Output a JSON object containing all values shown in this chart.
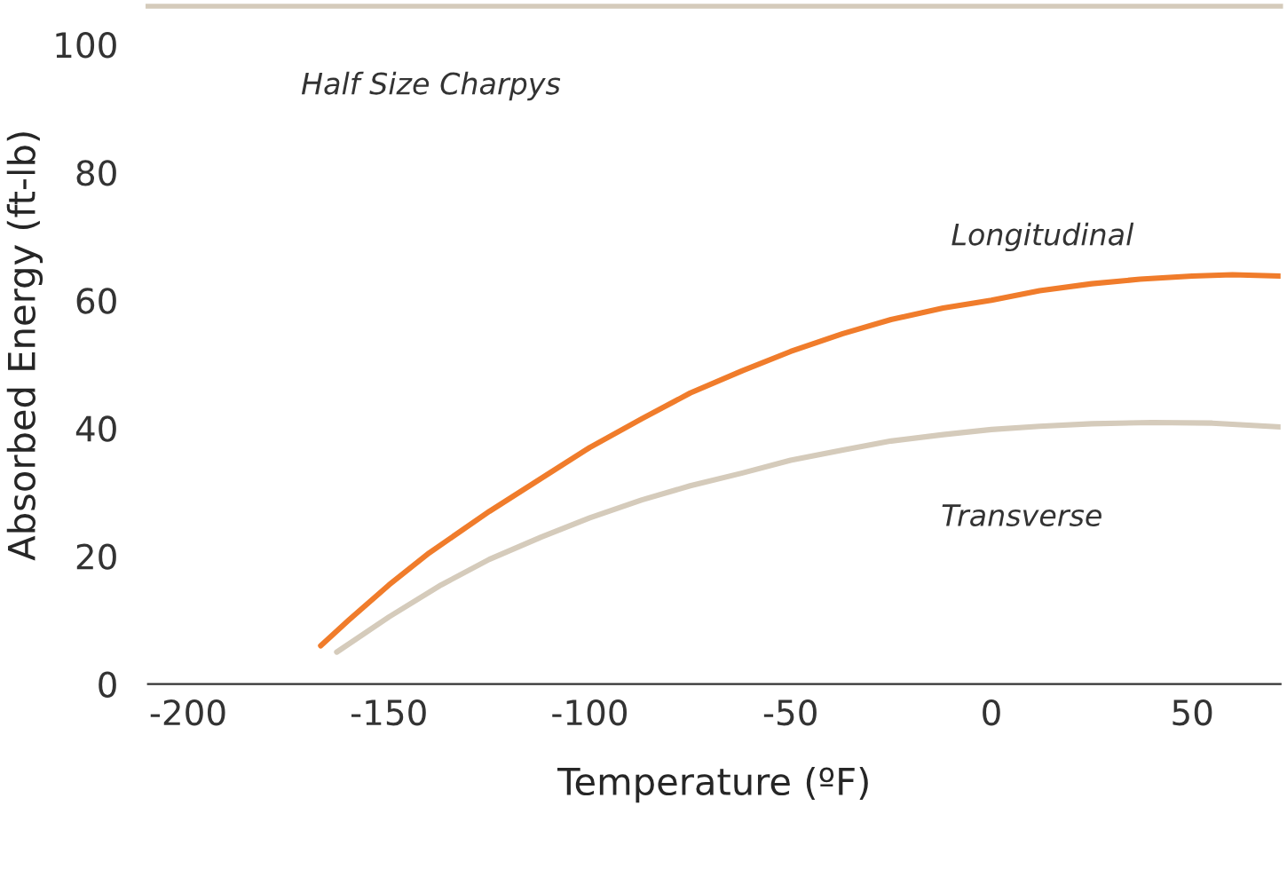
{
  "chart_data": {
    "type": "line",
    "xlabel": "Temperature (ºF)",
    "ylabel": "Absorbed Energy (ft-lb)",
    "xlim": [
      -210,
      72
    ],
    "ylim": [
      0,
      106
    ],
    "xticks": [
      -200,
      -150,
      -100,
      -50,
      0,
      50
    ],
    "yticks": [
      0,
      20,
      40,
      60,
      80,
      100
    ],
    "grid": false,
    "legend": false,
    "marker": "none",
    "line_style": "solid",
    "series": [
      {
        "name": "Longitudinal",
        "color": "#f07c2b",
        "x": [
          -167,
          -160,
          -150,
          -140,
          -125,
          -110,
          -100,
          -87,
          -75,
          -62,
          -50,
          -37,
          -25,
          -12,
          0,
          12,
          25,
          37,
          50,
          60,
          72
        ],
        "values": [
          6,
          10,
          15.5,
          20.5,
          27,
          33,
          37,
          41.5,
          45.5,
          49,
          52,
          54.8,
          57,
          58.8,
          60,
          61.5,
          62.6,
          63.3,
          63.8,
          64,
          63.8
        ]
      },
      {
        "name": "Transverse",
        "color": "#d5cbbb",
        "x": [
          -163,
          -150,
          -137,
          -125,
          -112,
          -100,
          -87,
          -75,
          -62,
          -50,
          -37,
          -25,
          -12,
          0,
          12,
          25,
          40,
          55,
          72
        ],
        "values": [
          5,
          10.5,
          15.5,
          19.5,
          23,
          26,
          28.8,
          31,
          33,
          35,
          36.6,
          38,
          39,
          39.8,
          40.3,
          40.7,
          40.9,
          40.8,
          40.2
        ]
      }
    ],
    "annotations": [
      "Half Size Charpys"
    ]
  }
}
